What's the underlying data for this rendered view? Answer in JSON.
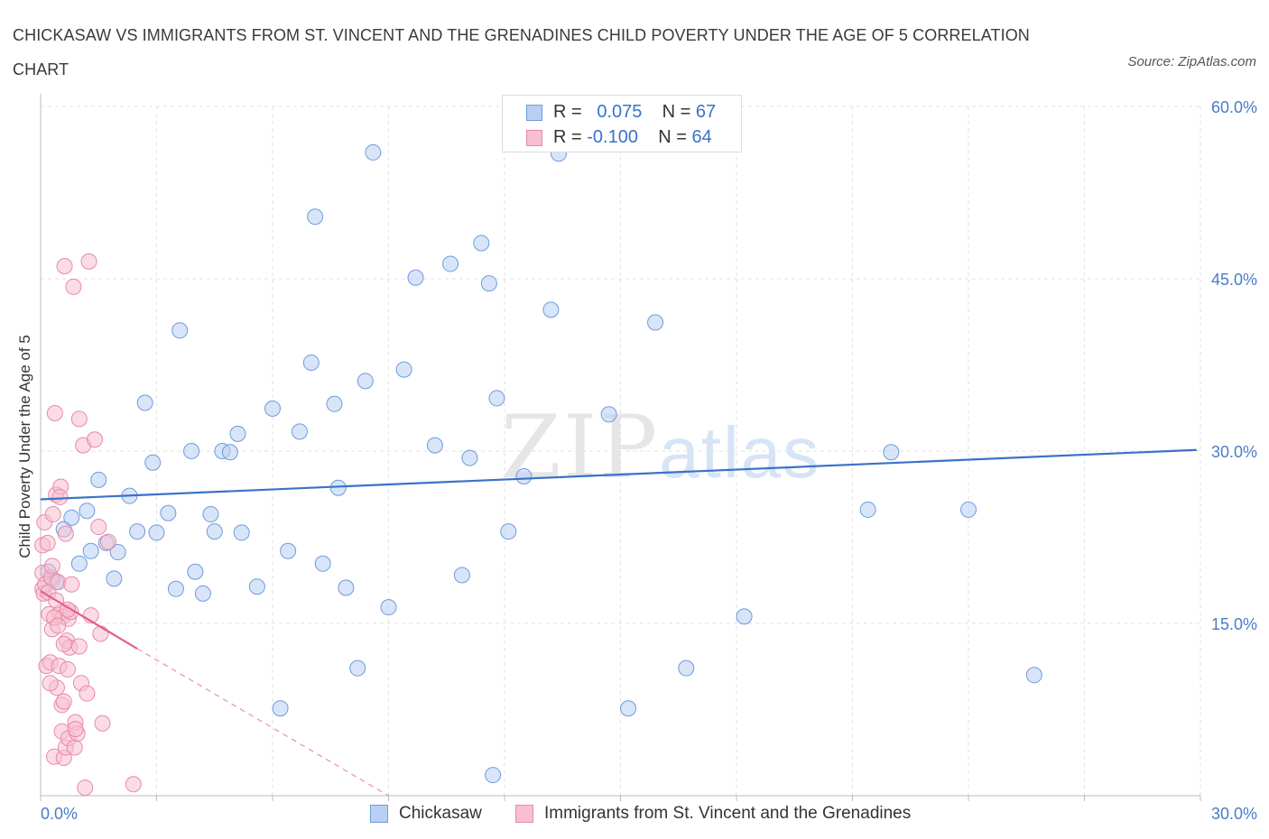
{
  "title": "CHICKASAW VS IMMIGRANTS FROM ST. VINCENT AND THE GRENADINES CHILD POVERTY UNDER THE AGE OF 5 CORRELATION CHART",
  "source": "Source: ZipAtlas.com",
  "watermark": {
    "zip": "ZIP",
    "atlas": "atlas"
  },
  "legend": {
    "rows": [
      {
        "r_key": "R =",
        "r_value": "0.075",
        "n_key": "N =",
        "n_value": "67"
      },
      {
        "r_key": "R =",
        "r_value": "-0.100",
        "n_key": "N =",
        "n_value": "64"
      }
    ]
  },
  "colors": {
    "blue_fill": "#b8d0f3",
    "blue_stroke": "#6f9bdc",
    "blue_line": "#3a72c8",
    "pink_fill": "#f7bfd0",
    "pink_stroke": "#e889a8",
    "pink_line": "#e0608a",
    "axis_label": "#4a7cc9",
    "grid": "#e2e2e2"
  },
  "chart_data": {
    "type": "scatter",
    "title": "CHICKASAW VS IMMIGRANTS FROM ST. VINCENT AND THE GRENADINES CHILD POVERTY UNDER THE AGE OF 5 CORRELATION CHART",
    "xlabel": "",
    "ylabel": "Child Poverty Under the Age of 5",
    "xlim": [
      0,
      30
    ],
    "ylim": [
      0,
      60
    ],
    "x_ticks": [
      "0.0%",
      "30.0%"
    ],
    "y_ticks": [
      {
        "value": 15,
        "label": "15.0%"
      },
      {
        "value": 30,
        "label": "30.0%"
      },
      {
        "value": 45,
        "label": "45.0%"
      },
      {
        "value": 60,
        "label": "60.0%"
      }
    ],
    "grid": true,
    "legend_position": "top-center",
    "series": [
      {
        "name": "Chickasaw",
        "color": "blue",
        "trend": {
          "x": [
            0,
            29.9
          ],
          "y": [
            25.8,
            30.1
          ],
          "dashed_extension": false
        },
        "points": [
          [
            0.2,
            19.5
          ],
          [
            0.3,
            18.8
          ],
          [
            0.4,
            18.6
          ],
          [
            0.6,
            23.2
          ],
          [
            0.8,
            24.2
          ],
          [
            1.0,
            20.2
          ],
          [
            1.2,
            24.8
          ],
          [
            1.3,
            21.3
          ],
          [
            1.5,
            27.5
          ],
          [
            1.7,
            22.0
          ],
          [
            1.9,
            18.9
          ],
          [
            2.0,
            21.2
          ],
          [
            2.3,
            26.1
          ],
          [
            2.5,
            23.0
          ],
          [
            2.7,
            34.2
          ],
          [
            2.9,
            29.0
          ],
          [
            3.0,
            22.9
          ],
          [
            3.3,
            24.6
          ],
          [
            3.5,
            18.0
          ],
          [
            3.6,
            40.5
          ],
          [
            3.9,
            30.0
          ],
          [
            4.0,
            19.5
          ],
          [
            4.2,
            17.6
          ],
          [
            4.4,
            24.5
          ],
          [
            4.5,
            23.0
          ],
          [
            4.7,
            30.0
          ],
          [
            4.9,
            29.9
          ],
          [
            5.1,
            31.5
          ],
          [
            5.2,
            22.9
          ],
          [
            5.6,
            18.2
          ],
          [
            6.0,
            33.7
          ],
          [
            6.2,
            7.6
          ],
          [
            6.4,
            21.3
          ],
          [
            6.7,
            31.7
          ],
          [
            7.0,
            37.7
          ],
          [
            7.1,
            50.4
          ],
          [
            7.3,
            20.2
          ],
          [
            7.6,
            34.1
          ],
          [
            7.7,
            26.8
          ],
          [
            7.9,
            18.1
          ],
          [
            8.2,
            11.1
          ],
          [
            8.4,
            36.1
          ],
          [
            8.6,
            56.0
          ],
          [
            9.0,
            16.4
          ],
          [
            9.4,
            37.1
          ],
          [
            9.7,
            45.1
          ],
          [
            10.2,
            30.5
          ],
          [
            10.6,
            46.3
          ],
          [
            10.9,
            19.2
          ],
          [
            11.1,
            29.4
          ],
          [
            11.4,
            48.1
          ],
          [
            11.6,
            44.6
          ],
          [
            11.7,
            1.8
          ],
          [
            11.8,
            34.6
          ],
          [
            12.1,
            23.0
          ],
          [
            12.5,
            27.8
          ],
          [
            13.2,
            42.3
          ],
          [
            13.4,
            55.9
          ],
          [
            14.7,
            33.2
          ],
          [
            15.2,
            7.6
          ],
          [
            15.9,
            41.2
          ],
          [
            16.7,
            11.1
          ],
          [
            18.2,
            15.6
          ],
          [
            21.4,
            24.9
          ],
          [
            22.0,
            29.9
          ],
          [
            24.0,
            24.9
          ],
          [
            25.7,
            10.5
          ]
        ]
      },
      {
        "name": "Immigrants from St. Vincent and the Grenadines",
        "color": "pink",
        "trend": {
          "x": [
            0,
            2.5
          ],
          "y": [
            17.8,
            12.8
          ],
          "dashed_to": [
            9.0,
            0
          ]
        },
        "points": [
          [
            0.05,
            21.8
          ],
          [
            0.05,
            19.4
          ],
          [
            0.05,
            18.0
          ],
          [
            0.08,
            17.6
          ],
          [
            0.1,
            23.8
          ],
          [
            0.12,
            18.4
          ],
          [
            0.15,
            11.3
          ],
          [
            0.18,
            22.0
          ],
          [
            0.2,
            17.7
          ],
          [
            0.22,
            15.8
          ],
          [
            0.25,
            11.6
          ],
          [
            0.28,
            19.0
          ],
          [
            0.3,
            14.5
          ],
          [
            0.32,
            24.5
          ],
          [
            0.35,
            3.4
          ],
          [
            0.37,
            33.3
          ],
          [
            0.4,
            26.2
          ],
          [
            0.42,
            9.4
          ],
          [
            0.45,
            18.6
          ],
          [
            0.48,
            11.3
          ],
          [
            0.5,
            15.9
          ],
          [
            0.52,
            26.9
          ],
          [
            0.55,
            7.9
          ],
          [
            0.55,
            5.6
          ],
          [
            0.58,
            15.6
          ],
          [
            0.6,
            3.3
          ],
          [
            0.6,
            8.2
          ],
          [
            0.62,
            46.1
          ],
          [
            0.65,
            4.2
          ],
          [
            0.65,
            22.8
          ],
          [
            0.68,
            13.5
          ],
          [
            0.7,
            11.0
          ],
          [
            0.72,
            15.4
          ],
          [
            0.72,
            5.0
          ],
          [
            0.75,
            12.9
          ],
          [
            0.78,
            16.0
          ],
          [
            0.8,
            18.4
          ],
          [
            0.85,
            44.3
          ],
          [
            0.88,
            4.2
          ],
          [
            0.9,
            6.4
          ],
          [
            0.95,
            5.4
          ],
          [
            1.0,
            13.0
          ],
          [
            1.0,
            32.8
          ],
          [
            1.05,
            9.8
          ],
          [
            1.1,
            30.5
          ],
          [
            1.15,
            0.7
          ],
          [
            1.2,
            8.9
          ],
          [
            1.25,
            46.5
          ],
          [
            1.3,
            15.7
          ],
          [
            1.4,
            31.0
          ],
          [
            1.5,
            23.4
          ],
          [
            1.55,
            14.1
          ],
          [
            1.6,
            6.3
          ],
          [
            1.75,
            22.1
          ],
          [
            2.4,
            1.0
          ],
          [
            0.5,
            26.0
          ],
          [
            0.6,
            13.2
          ],
          [
            0.35,
            15.5
          ],
          [
            0.45,
            14.8
          ],
          [
            0.25,
            9.8
          ],
          [
            0.3,
            20.0
          ],
          [
            0.4,
            17.0
          ],
          [
            0.7,
            16.2
          ],
          [
            0.9,
            5.8
          ]
        ]
      }
    ]
  },
  "bottom_legend": [
    {
      "label": "Chickasaw",
      "color": "blue"
    },
    {
      "label": "Immigrants from St. Vincent and the Grenadines",
      "color": "pink"
    }
  ]
}
